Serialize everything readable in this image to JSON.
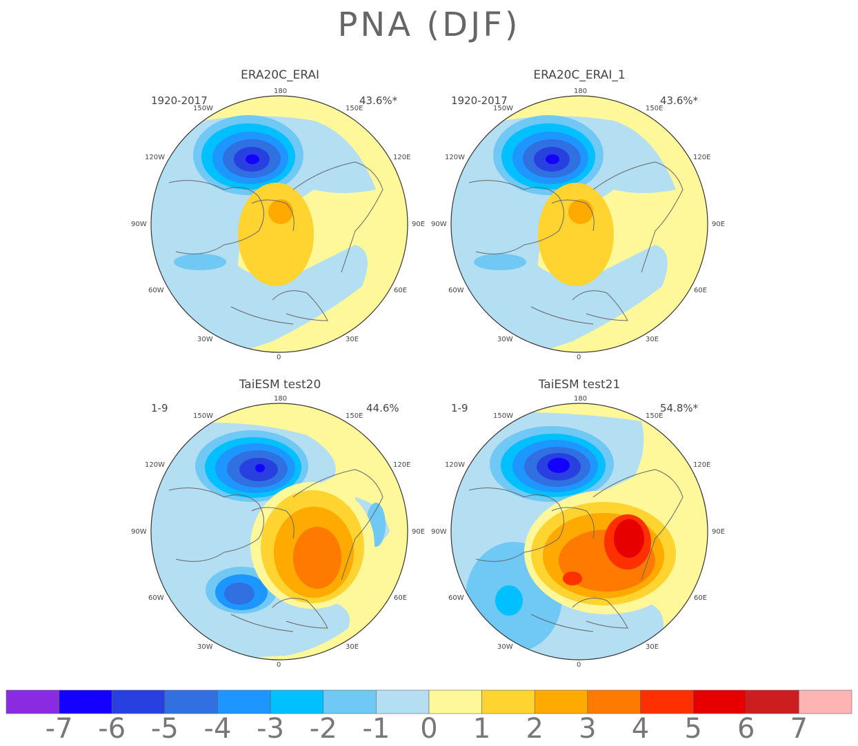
{
  "title": "PNA (DJF)",
  "panels": [
    {
      "title": "ERA20C_ERAI",
      "period": "1920-2017",
      "variance": "43.6%*"
    },
    {
      "title": "ERA20C_ERAI_1",
      "period": "1920-2017",
      "variance": "43.6%*"
    },
    {
      "title": "TaiESM test20",
      "period": "1-9",
      "variance": "44.6%"
    },
    {
      "title": "TaiESM test21",
      "period": "1-9",
      "variance": "54.8%*"
    }
  ],
  "longitude_labels": {
    "l180": "180",
    "l150w": "150W",
    "l150e": "150E",
    "l120w": "120W",
    "l120e": "120E",
    "l90w": "90W",
    "l90e": "90E",
    "l60w": "60W",
    "l60e": "60E",
    "l30w": "30W",
    "l30e": "30E",
    "l0": "0"
  },
  "colorbar": {
    "labels": [
      "-7",
      "-6",
      "-5",
      "-4",
      "-3",
      "-2",
      "-1",
      "0",
      "1",
      "2",
      "3",
      "4",
      "5",
      "6",
      "7"
    ],
    "colors": [
      "#8a2be2",
      "#1400ff",
      "#2840e0",
      "#3070e0",
      "#1e96ff",
      "#00c0ff",
      "#70c8f5",
      "#b4def2",
      "#fff89a",
      "#ffd430",
      "#ffaa00",
      "#ff7a00",
      "#ff3000",
      "#e60000",
      "#cc1e1e",
      "#ffb4b4"
    ]
  }
}
